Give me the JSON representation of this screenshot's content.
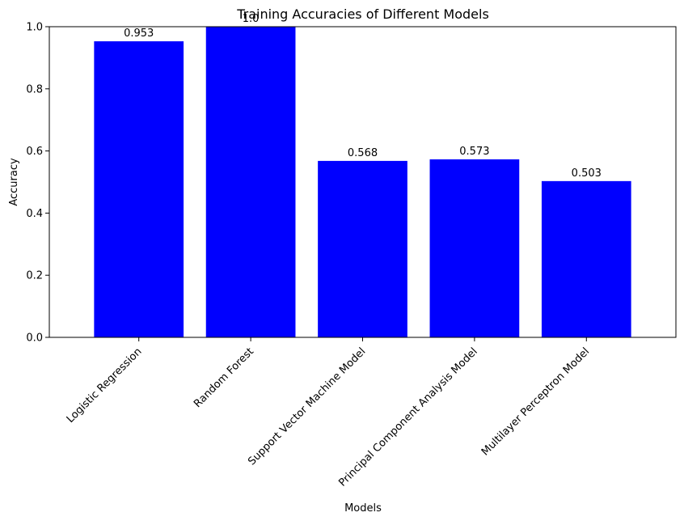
{
  "chart_data": {
    "type": "bar",
    "title": "Training Accuracies of Different Models",
    "xlabel": "Models",
    "ylabel": "Accuracy",
    "categories": [
      "Logistic Regression",
      "Random Forest",
      "Support Vector Machine Model",
      "Principal Component Analysis Model",
      "Multilayer Perceptron Model"
    ],
    "values": [
      0.953,
      1.0,
      0.568,
      0.573,
      0.503
    ],
    "data_labels": [
      "0.953",
      "1.0",
      "0.568",
      "0.573",
      "0.503"
    ],
    "ylim": [
      0,
      1.0
    ],
    "yticks": [
      0.0,
      0.2,
      0.4,
      0.6,
      0.8,
      1.0
    ],
    "ytick_labels": [
      "0.0",
      "0.2",
      "0.4",
      "0.6",
      "0.8",
      "1.0"
    ],
    "bar_color": "#0000ff",
    "grid": false,
    "xtick_rotation_deg": 45
  }
}
